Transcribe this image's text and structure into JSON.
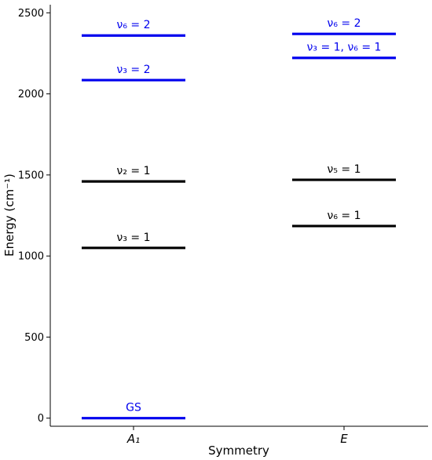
{
  "chart_data": {
    "type": "energy-level",
    "xlabel": "Symmetry",
    "ylabel": "Energy (cm⁻¹)",
    "ylim": [
      -50,
      2550
    ],
    "yticks": [
      0,
      500,
      1000,
      1500,
      2000,
      2500
    ],
    "categories": [
      "A₁",
      "E"
    ],
    "colors": {
      "overtone": "#0000ee",
      "fundamental": "#000000"
    },
    "levels": [
      {
        "category": "A₁",
        "energy": 0,
        "label": "GS",
        "color": "#0000ee"
      },
      {
        "category": "A₁",
        "energy": 1050,
        "label": "ν₃ = 1",
        "color": "#000000"
      },
      {
        "category": "A₁",
        "energy": 1460,
        "label": "ν₂ = 1",
        "color": "#000000"
      },
      {
        "category": "A₁",
        "energy": 2085,
        "label": "ν₃ = 2",
        "color": "#0000ee"
      },
      {
        "category": "A₁",
        "energy": 2360,
        "label": "ν₆ = 2",
        "color": "#0000ee"
      },
      {
        "category": "E",
        "energy": 1185,
        "label": "ν₆ = 1",
        "color": "#000000"
      },
      {
        "category": "E",
        "energy": 1470,
        "label": "ν₅ = 1",
        "color": "#000000"
      },
      {
        "category": "E",
        "energy": 2222,
        "label": "ν₃ = 1,  ν₆ = 1",
        "color": "#0000ee"
      },
      {
        "category": "E",
        "energy": 2370,
        "label": "ν₆ = 2",
        "color": "#0000ee"
      }
    ]
  }
}
